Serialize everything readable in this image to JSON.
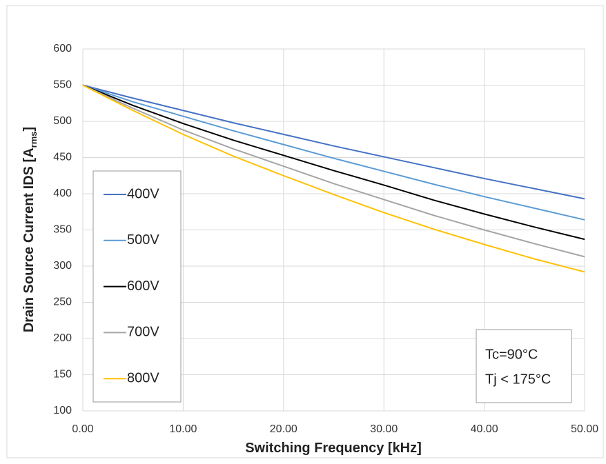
{
  "chart_data": {
    "type": "line",
    "xlabel": "Switching Frequency [kHz]",
    "ylabel": "Drain Source Current IDS [A",
    "ylabel_sub": "rms",
    "ylabel_end": "]",
    "x": [
      0,
      5,
      10,
      15,
      20,
      25,
      30,
      35,
      40,
      45,
      50
    ],
    "series": [
      {
        "name": "400V",
        "color": "#4472c4",
        "values": [
          550,
          532,
          515,
          498,
          482,
          466,
          451,
          436,
          421,
          407,
          393
        ]
      },
      {
        "name": "500V",
        "color": "#5b9bd5",
        "values": [
          550,
          527,
          507,
          487,
          468,
          449,
          431,
          413,
          396,
          380,
          364
        ]
      },
      {
        "name": "600V",
        "color": "#000000",
        "values": [
          550,
          522,
          497,
          474,
          453,
          432,
          412,
          391,
          372,
          354,
          337
        ]
      },
      {
        "name": "700V",
        "color": "#a5a5a5",
        "values": [
          550,
          518,
          488,
          462,
          438,
          414,
          392,
          370,
          350,
          331,
          313
        ]
      },
      {
        "name": "800V",
        "color": "#ffc000",
        "values": [
          550,
          515,
          482,
          452,
          425,
          399,
          374,
          351,
          330,
          310,
          292
        ]
      }
    ],
    "xlim": [
      0,
      50
    ],
    "xticks": [
      {
        "value": 0,
        "label": "0.00"
      },
      {
        "value": 10,
        "label": "10.00"
      },
      {
        "value": 20,
        "label": "20.00"
      },
      {
        "value": 30,
        "label": "30.00"
      },
      {
        "value": 40,
        "label": "40.00"
      },
      {
        "value": 50,
        "label": "50.00"
      }
    ],
    "ylim": [
      100,
      600
    ],
    "yticks": [
      100,
      150,
      200,
      250,
      300,
      350,
      400,
      450,
      500,
      550,
      600
    ],
    "grid": true,
    "legend": "left",
    "annotations": [
      "Tc=90°C",
      "Tj < 175°C"
    ]
  }
}
